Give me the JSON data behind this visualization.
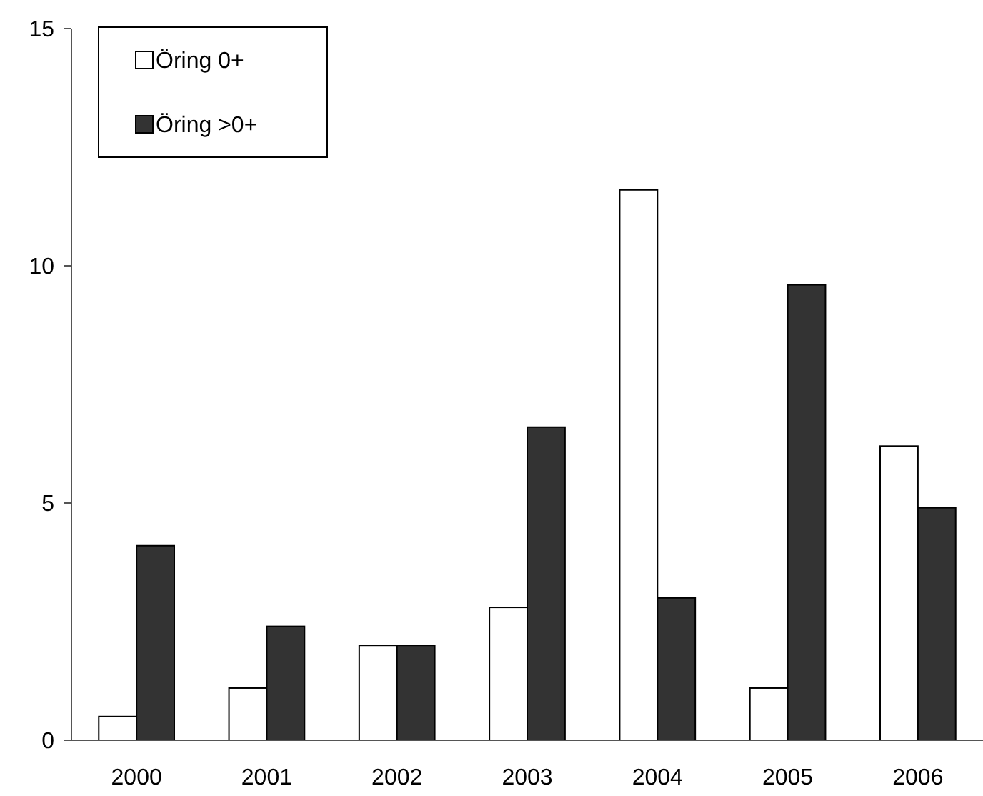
{
  "chart_data": {
    "type": "bar",
    "categories": [
      "2000",
      "2001",
      "2002",
      "2003",
      "2004",
      "2005",
      "2006"
    ],
    "series": [
      {
        "name": "Öring 0+",
        "color": "#ffffff",
        "values": [
          0.5,
          1.1,
          2.0,
          2.8,
          11.6,
          1.1,
          6.2
        ]
      },
      {
        "name": "Öring >0+",
        "color": "#333333",
        "values": [
          4.1,
          2.4,
          2.0,
          6.6,
          3.0,
          9.6,
          4.9
        ]
      }
    ],
    "ylim": [
      0,
      15
    ],
    "yticks": [
      0,
      5,
      10,
      15
    ],
    "grid": false,
    "legend": "top left"
  }
}
